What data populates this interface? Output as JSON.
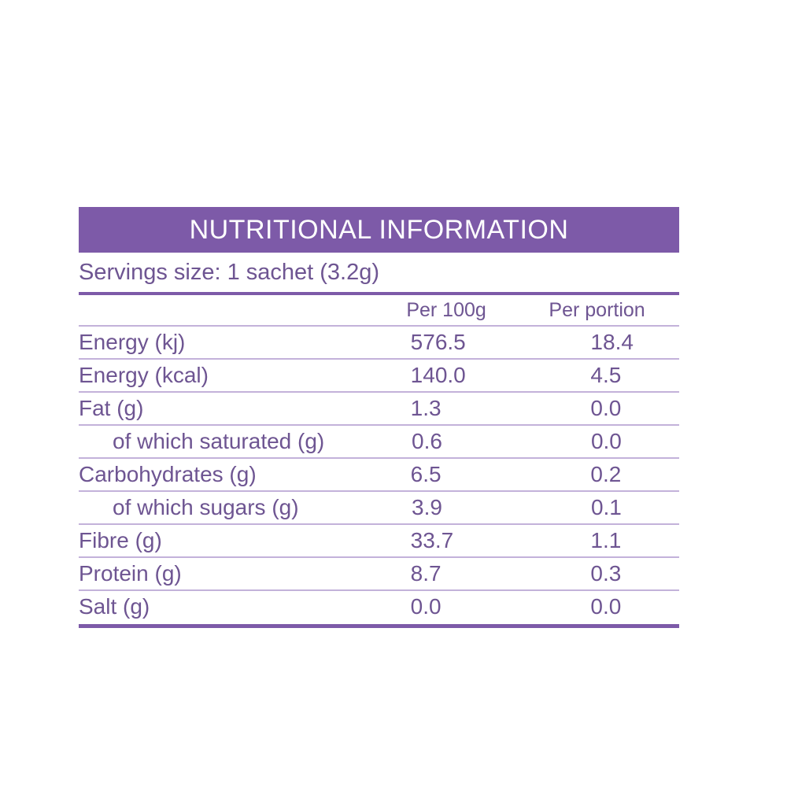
{
  "title": "NUTRITIONAL INFORMATION",
  "serving_size": "Servings size: 1 sachet (3.2g)",
  "columns": {
    "per_100g": "Per 100g",
    "per_portion": "Per portion"
  },
  "rows": [
    {
      "label": "Energy (kj)",
      "per_100g": "576.5",
      "per_portion": "18.4"
    },
    {
      "label": "Energy (kcal)",
      "per_100g": "140.0",
      "per_portion": "4.5"
    },
    {
      "label": "Fat (g)",
      "per_100g": "1.3",
      "per_portion": "0.0"
    },
    {
      "label": "of which saturated (g)",
      "per_100g": "0.6",
      "per_portion": "0.0"
    },
    {
      "label": "Carbohydrates (g)",
      "per_100g": "6.5",
      "per_portion": "0.2"
    },
    {
      "label": "of which sugars (g)",
      "per_100g": "3.9",
      "per_portion": "0.1"
    },
    {
      "label": "Fibre (g)",
      "per_100g": "33.7",
      "per_portion": "1.1"
    },
    {
      "label": "Protein (g)",
      "per_100g": "8.7",
      "per_portion": "0.3"
    },
    {
      "label": "Salt (g)",
      "per_100g": "0.0",
      "per_portion": "0.0"
    }
  ],
  "colors": {
    "accent": "#7d5aa8",
    "text": "#6e5592",
    "rule": "#c3b2da"
  }
}
